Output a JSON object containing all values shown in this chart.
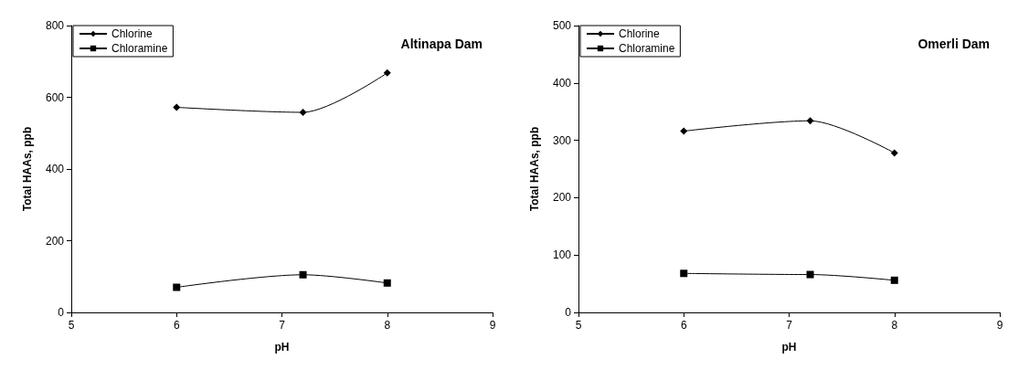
{
  "chart_data": [
    {
      "type": "line",
      "title": "Altinapa Dam",
      "xlabel": "pH",
      "ylabel": "Total HAAs, ppb",
      "xlim": [
        5,
        9
      ],
      "xticks": [
        5,
        6,
        7,
        8,
        9
      ],
      "ylim": [
        0,
        800
      ],
      "yticks": [
        0,
        200,
        400,
        600,
        800
      ],
      "grid": false,
      "legend": "top left",
      "line_style": "solid",
      "series": [
        {
          "name": "Chlorine",
          "color": "#000000",
          "marker": "diamond",
          "x": [
            6,
            7.2,
            8
          ],
          "values": [
            572,
            558,
            668
          ]
        },
        {
          "name": "Chloramine",
          "color": "#000000",
          "marker": "square",
          "x": [
            6,
            7.2,
            8
          ],
          "values": [
            70,
            105,
            82
          ]
        }
      ]
    },
    {
      "type": "line",
      "title": "Omerli Dam",
      "xlabel": "pH",
      "ylabel": "Total HAAs, ppb",
      "xlim": [
        5,
        9
      ],
      "xticks": [
        5,
        6,
        7,
        8,
        9
      ],
      "ylim": [
        0,
        500
      ],
      "yticks": [
        0,
        100,
        200,
        300,
        400,
        500
      ],
      "grid": false,
      "legend": "top left",
      "line_style": "solid",
      "series": [
        {
          "name": "Chlorine",
          "color": "#000000",
          "marker": "diamond",
          "x": [
            6,
            7.2,
            8
          ],
          "values": [
            316,
            334,
            278
          ]
        },
        {
          "name": "Chloramine",
          "color": "#000000",
          "marker": "square",
          "x": [
            6,
            7.2,
            8
          ],
          "values": [
            68,
            66,
            56
          ]
        }
      ]
    }
  ]
}
